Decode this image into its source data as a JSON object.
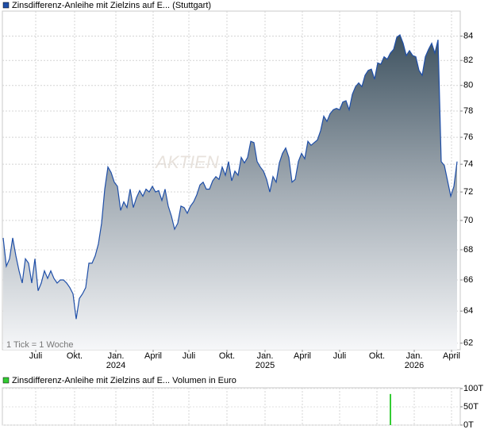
{
  "chart_data": [
    {
      "type": "line",
      "series": [
        {
          "name": "Zinsdifferenz-Anleihe mit Zielzins auf E... (Stuttgart)",
          "color": "#1f4fa8",
          "values": [
            68.8,
            66.9,
            67.4,
            68.8,
            67.6,
            66.6,
            65.8,
            67.4,
            67.1,
            65.8,
            67.4,
            65.3,
            65.8,
            66.6,
            66.1,
            66.6,
            66.1,
            65.8,
            66.0,
            66.0,
            65.8,
            65.5,
            65.1,
            63.5,
            64.8,
            65.1,
            65.5,
            67.1,
            67.1,
            67.6,
            68.4,
            69.8,
            72.2,
            73.8,
            73.4,
            72.7,
            72.4,
            70.7,
            71.3,
            70.9,
            72.2,
            70.9,
            71.6,
            72.1,
            71.7,
            72.2,
            72.0,
            72.4,
            72.0,
            72.1,
            71.4,
            72.2,
            71.0,
            70.3,
            69.4,
            69.8,
            71.0,
            70.9,
            70.5,
            71.0,
            71.3,
            71.8,
            72.5,
            72.7,
            72.2,
            72.2,
            72.8,
            73.1,
            72.9,
            73.8,
            73.2,
            74.2,
            72.8,
            73.5,
            73.2,
            74.5,
            74.1,
            74.5,
            75.7,
            75.6,
            74.2,
            73.8,
            73.5,
            72.9,
            72.0,
            73.1,
            72.7,
            74.1,
            74.8,
            75.2,
            74.5,
            72.7,
            72.9,
            74.2,
            74.8,
            74.4,
            75.7,
            75.4,
            75.6,
            75.8,
            76.5,
            77.6,
            77.2,
            77.8,
            78.1,
            78.2,
            78.1,
            78.7,
            78.8,
            78.1,
            79.3,
            79.9,
            80.2,
            79.9,
            80.8,
            81.2,
            81.3,
            80.5,
            81.8,
            81.7,
            82.3,
            82.1,
            82.6,
            82.9,
            83.9,
            84.1,
            83.4,
            82.4,
            82.8,
            82.4,
            82.3,
            81.2,
            80.8,
            82.3,
            82.9,
            83.4,
            82.6,
            83.7,
            74.2,
            73.9,
            72.8,
            71.7,
            72.4,
            74.2
          ]
        }
      ],
      "log_scale": true,
      "ylim": [
        61.6,
        86.1
      ],
      "yticks": [
        62,
        64,
        66,
        68,
        70,
        72,
        74,
        76,
        78,
        80,
        82,
        84
      ],
      "xlim": [
        0,
        143
      ],
      "xticks": [
        {
          "value": 10.25,
          "label": "Juli"
        },
        {
          "value": 22.5,
          "label": "Okt."
        },
        {
          "value": 35.5,
          "label": "Jan. 2024"
        },
        {
          "value": 47.25,
          "label": "April"
        },
        {
          "value": 58.5,
          "label": "Juli"
        },
        {
          "value": 70.5,
          "label": "Okt."
        },
        {
          "value": 82.5,
          "label": "Jan. 2025"
        },
        {
          "value": 94.25,
          "label": "April"
        },
        {
          "value": 106,
          "label": "Juli"
        },
        {
          "value": 117.75,
          "label": "Okt."
        },
        {
          "value": 129.5,
          "label": "Jan. 2026"
        },
        {
          "value": 141.25,
          "label": "April"
        }
      ],
      "grid": true,
      "annotation": "1 Tick = 1 Woche",
      "watermark": "AKTIEN"
    },
    {
      "type": "bar",
      "series": [
        {
          "name": "Zinsdifferenz-Anleihe mit Zielzins auf E... Volumen in Euro",
          "color": "#33cc33"
        }
      ],
      "x": [
        122
      ],
      "values": [
        85
      ],
      "xlim": [
        0,
        143
      ],
      "ylim": [
        0,
        102
      ],
      "yticks": [
        {
          "value": 0,
          "label": "0T"
        },
        {
          "value": 50,
          "label": "50T"
        },
        {
          "value": 100,
          "label": "100T"
        }
      ],
      "grid": true
    }
  ]
}
